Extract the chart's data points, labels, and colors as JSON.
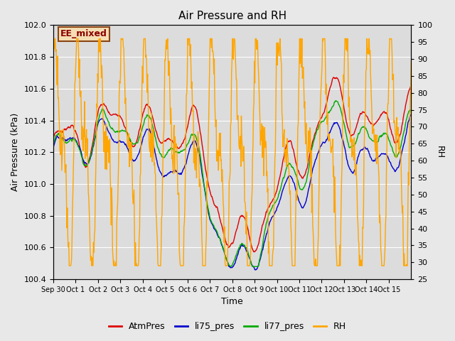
{
  "title": "Air Pressure and RH",
  "ylabel_left": "Air Pressure (kPa)",
  "ylabel_right": "RH",
  "xlabel": "Time",
  "ylim_left": [
    100.4,
    102.0
  ],
  "ylim_right": [
    25,
    100
  ],
  "annotation_text": "EE_mixed",
  "annotation_color": "#8B0000",
  "annotation_bg": "#F5DEB3",
  "annotation_edge": "#8B4513",
  "fig_bg_color": "#E8E8E8",
  "plot_bg_color": "#DCDCDC",
  "colors": {
    "AtmPres": "#DD0000",
    "li75_pres": "#0000CC",
    "li77_pres": "#00AA00",
    "RH": "#FFA500"
  },
  "legend_labels": [
    "AtmPres",
    "li75_pres",
    "li77_pres",
    "RH"
  ],
  "xtick_labels": [
    "Sep 30",
    "Oct 1",
    "Oct 2",
    "Oct 3",
    "Oct 4",
    "Oct 5",
    "Oct 6",
    "Oct 7",
    "Oct 8",
    "Oct 9",
    "Oct 10",
    "Oct 11",
    "Oct 12",
    "Oct 13",
    "Oct 14",
    "Oct 15"
  ],
  "yticks_left": [
    100.4,
    100.6,
    100.8,
    101.0,
    101.2,
    101.4,
    101.6,
    101.8,
    102.0
  ],
  "yticks_right": [
    25,
    30,
    35,
    40,
    45,
    50,
    55,
    60,
    65,
    70,
    75,
    80,
    85,
    90,
    95,
    100
  ],
  "linewidth": 1.0,
  "grid_color": "#FFFFFF",
  "title_fontsize": 11,
  "label_fontsize": 9,
  "tick_fontsize": 8
}
